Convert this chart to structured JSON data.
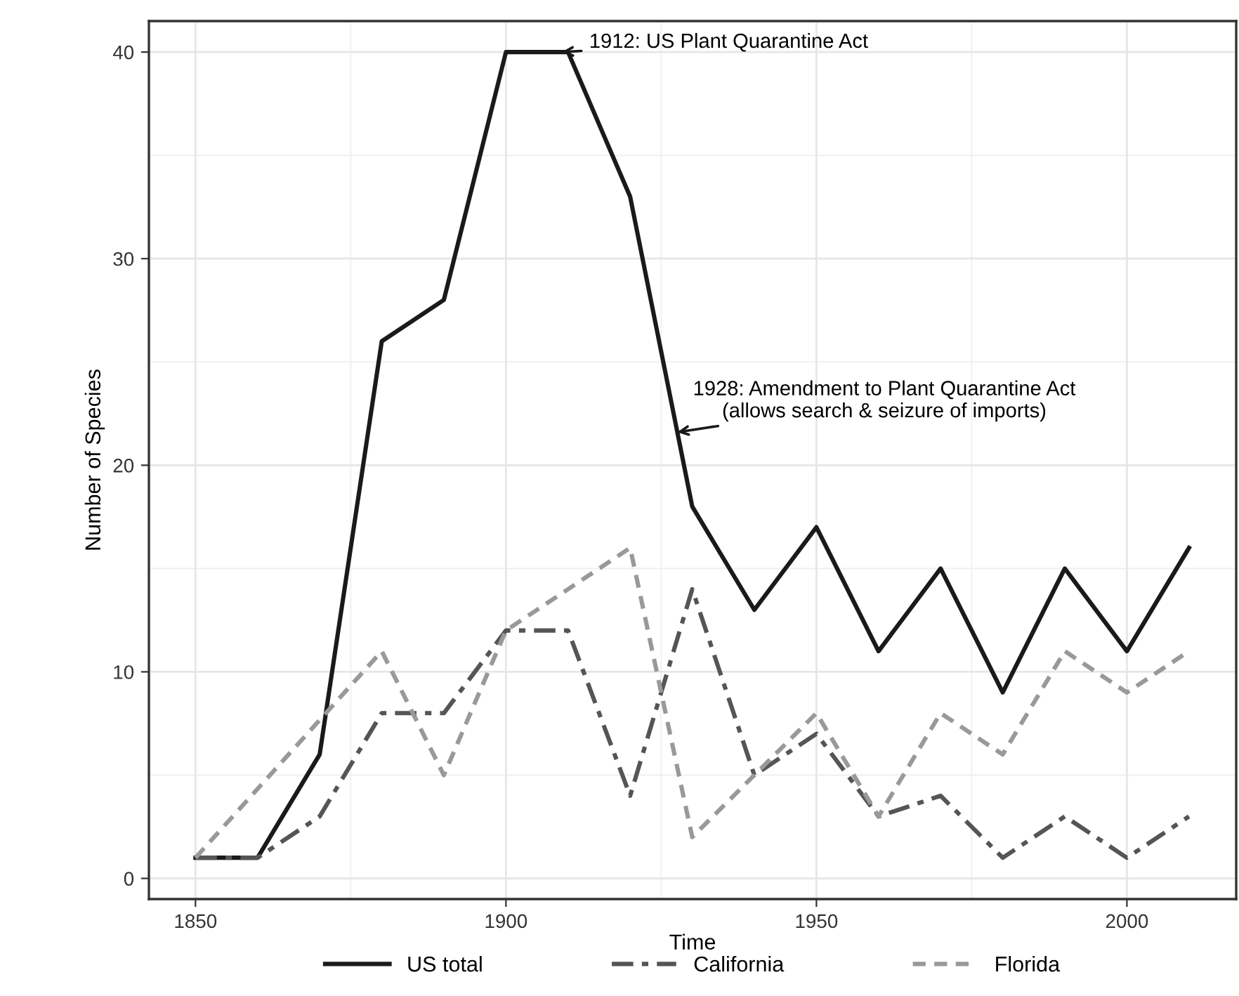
{
  "chart_data": {
    "type": "line",
    "xlabel": "Time",
    "ylabel": "Number of Species",
    "xlim": [
      1842.5,
      2017.6
    ],
    "ylim": [
      -1.0,
      41.5
    ],
    "xticks": [
      1850,
      1900,
      1950,
      2000
    ],
    "yticks": [
      0,
      10,
      20,
      30,
      40
    ],
    "grid": true,
    "legend": "bottom",
    "marker": "none",
    "series": [
      {
        "name": "US total",
        "color": "#1a1a1a",
        "line_style": "solid",
        "x": [
          1850,
          1860,
          1870,
          1880,
          1890,
          1900,
          1910,
          1920,
          1930,
          1940,
          1950,
          1960,
          1970,
          1980,
          1990,
          2000,
          2010
        ],
        "values": [
          1,
          1,
          6,
          26,
          28,
          40,
          40,
          33,
          18,
          13,
          17,
          11,
          15,
          9,
          15,
          11,
          16
        ]
      },
      {
        "name": "California",
        "color": "#555555",
        "line_style": "dashdot",
        "x": [
          1850,
          1860,
          1870,
          1880,
          1890,
          1900,
          1910,
          1920,
          1930,
          1940,
          1950,
          1960,
          1970,
          1980,
          1990,
          2000,
          2010
        ],
        "values": [
          1,
          1,
          3,
          8,
          8,
          12,
          12,
          4,
          14,
          5,
          7,
          3,
          4,
          1,
          3,
          1,
          3
        ]
      },
      {
        "name": "Florida",
        "color": "#999999",
        "line_style": "dashed",
        "x": [
          1850,
          1880,
          1890,
          1900,
          1920,
          1930,
          1940,
          1950,
          1960,
          1970,
          1980,
          1990,
          2000,
          2010
        ],
        "values": [
          1,
          11,
          5,
          12,
          16,
          2,
          5,
          8,
          3,
          8,
          6,
          11,
          9,
          11
        ]
      }
    ],
    "annotations": [
      {
        "text": "1912: US Plant Quarantine Act",
        "x": 1909,
        "y": 40
      },
      {
        "text": "1928: Amendment to Plant Quarantine Act\n(allows search & seizure of imports)",
        "x": 1927.6,
        "y": 21.6
      }
    ]
  }
}
